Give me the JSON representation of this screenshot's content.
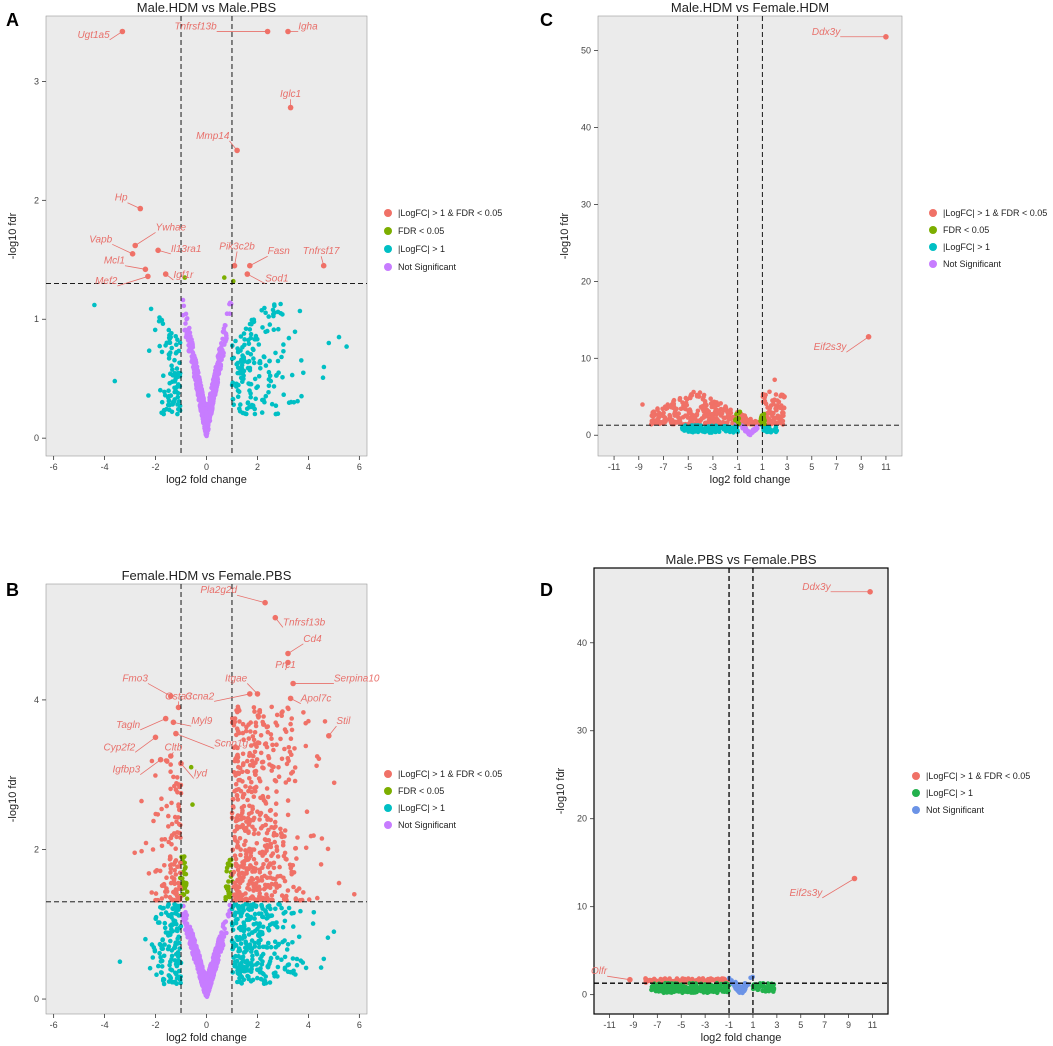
{
  "panels": [
    {
      "label": "A",
      "chart_data": {
        "type": "scatter",
        "title": "Male.HDM vs Male.PBS",
        "xlabel": "log2 fold change",
        "ylabel": "-log10 fdr",
        "xlim": [
          -6.3,
          6.3
        ],
        "ylim": [
          -0.15,
          3.55
        ],
        "xticks": [
          -6,
          -4,
          -2,
          0,
          2,
          4,
          6
        ],
        "yticks": [
          0,
          1,
          2,
          3
        ],
        "vlines": [
          -1,
          1
        ],
        "hline": 1.3,
        "legend": [
          "|LogFC| > 1 & FDR < 0.05",
          "FDR < 0.05",
          "|LogFC| > 1",
          "Not Significant"
        ],
        "legend_colors": [
          "#f07167",
          "#7cae00",
          "#00bfc4",
          "#c77cff"
        ],
        "annotations": [
          {
            "text": "Ugt1a5",
            "x": -3.3,
            "y": 3.42,
            "tx": -3.8,
            "ty": 3.35
          },
          {
            "text": "Tnfrsf13b",
            "x": 2.4,
            "y": 3.42,
            "tx": 0.4,
            "ty": 3.42
          },
          {
            "text": "Igha",
            "x": 3.2,
            "y": 3.42,
            "tx": 3.6,
            "ty": 3.42
          },
          {
            "text": "Iglc1",
            "x": 3.3,
            "y": 2.78,
            "tx": 3.3,
            "ty": 2.85
          },
          {
            "text": "Mmp14",
            "x": 1.2,
            "y": 2.42,
            "tx": 0.9,
            "ty": 2.5
          },
          {
            "text": "Hp",
            "x": -2.6,
            "y": 1.93,
            "tx": -3.1,
            "ty": 1.98
          },
          {
            "text": "Ywhae",
            "x": -2.8,
            "y": 1.62,
            "tx": -2.0,
            "ty": 1.73
          },
          {
            "text": "Vapb",
            "x": -2.9,
            "y": 1.55,
            "tx": -3.7,
            "ty": 1.63
          },
          {
            "text": "Il13ra1",
            "x": -1.9,
            "y": 1.58,
            "tx": -1.4,
            "ty": 1.55
          },
          {
            "text": "Pik3c2b",
            "x": 1.1,
            "y": 1.45,
            "tx": 1.2,
            "ty": 1.57
          },
          {
            "text": "Fasn",
            "x": 1.7,
            "y": 1.45,
            "tx": 2.4,
            "ty": 1.53
          },
          {
            "text": "Tnfrsf17",
            "x": 4.6,
            "y": 1.45,
            "tx": 4.5,
            "ty": 1.53
          },
          {
            "text": "Mcl1",
            "x": -2.4,
            "y": 1.42,
            "tx": -3.2,
            "ty": 1.45
          },
          {
            "text": "Igf1r",
            "x": -1.6,
            "y": 1.38,
            "tx": -1.3,
            "ty": 1.33
          },
          {
            "text": "Sod1",
            "x": 1.6,
            "y": 1.38,
            "tx": 2.3,
            "ty": 1.3
          },
          {
            "text": "Mef2",
            "x": -2.3,
            "y": 1.36,
            "tx": -3.5,
            "ty": 1.28
          }
        ]
      }
    },
    {
      "label": "B",
      "chart_data": {
        "type": "scatter",
        "title": "Female.HDM vs Female.PBS",
        "xlabel": "log2 fold change",
        "ylabel": "-log10 fdr",
        "xlim": [
          -6.3,
          6.3
        ],
        "ylim": [
          -0.2,
          5.55
        ],
        "xticks": [
          -6,
          -4,
          -2,
          0,
          2,
          4,
          6
        ],
        "yticks": [
          0,
          2,
          4
        ],
        "vlines": [
          -1,
          1
        ],
        "hline": 1.3,
        "legend": [
          "|LogFC| > 1 & FDR < 0.05",
          "FDR < 0.05",
          "|LogFC| > 1",
          "Not Significant"
        ],
        "legend_colors": [
          "#f07167",
          "#7cae00",
          "#00bfc4",
          "#c77cff"
        ],
        "annotations": [
          {
            "text": "Pla2g2d",
            "x": 2.3,
            "y": 5.3,
            "tx": 1.2,
            "ty": 5.4
          },
          {
            "text": "Tnfrsf13b",
            "x": 2.7,
            "y": 5.1,
            "tx": 3.0,
            "ty": 4.97
          },
          {
            "text": "Cd4",
            "x": 3.2,
            "y": 4.62,
            "tx": 3.8,
            "ty": 4.75
          },
          {
            "text": "Prc1",
            "x": 3.2,
            "y": 4.5,
            "tx": 3.1,
            "ty": 4.4
          },
          {
            "text": "Serpina10",
            "x": 3.4,
            "y": 4.22,
            "tx": 5.0,
            "ty": 4.22
          },
          {
            "text": "Fmo3",
            "x": -1.4,
            "y": 4.05,
            "tx": -2.3,
            "ty": 4.22
          },
          {
            "text": "Itgae",
            "x": 2.0,
            "y": 4.08,
            "tx": 1.6,
            "ty": 4.22
          },
          {
            "text": "Gsta3",
            "x": -1.1,
            "y": 3.9,
            "tx": -1.1,
            "ty": 3.98
          },
          {
            "text": "Ccna2",
            "x": 1.7,
            "y": 4.08,
            "tx": 0.3,
            "ty": 3.98
          },
          {
            "text": "Apol7c",
            "x": 3.3,
            "y": 4.02,
            "tx": 3.7,
            "ty": 3.95
          },
          {
            "text": "Tagln",
            "x": -1.6,
            "y": 3.75,
            "tx": -2.6,
            "ty": 3.6
          },
          {
            "text": "Myl9",
            "x": -1.3,
            "y": 3.7,
            "tx": -0.6,
            "ty": 3.65
          },
          {
            "text": "Stil",
            "x": 4.8,
            "y": 3.52,
            "tx": 5.1,
            "ty": 3.65
          },
          {
            "text": "Scnn1g",
            "x": -1.2,
            "y": 3.55,
            "tx": 0.3,
            "ty": 3.35
          },
          {
            "text": "Cyp2f2",
            "x": -2.0,
            "y": 3.5,
            "tx": -2.8,
            "ty": 3.3
          },
          {
            "text": "Cltb",
            "x": -1.4,
            "y": 3.25,
            "tx": -1.3,
            "ty": 3.3
          },
          {
            "text": "Igfbp3",
            "x": -1.8,
            "y": 3.2,
            "tx": -2.6,
            "ty": 3.0
          },
          {
            "text": "Iyd",
            "x": -1.0,
            "y": 3.15,
            "tx": -0.5,
            "ty": 2.95
          }
        ]
      }
    },
    {
      "label": "C",
      "chart_data": {
        "type": "scatter",
        "title": "Male.HDM vs Female.HDM",
        "xlabel": "log2 fold change",
        "ylabel": "-log10 fdr",
        "xlim": [
          -12.3,
          12.3
        ],
        "ylim": [
          -2.7,
          54.5
        ],
        "xticks": [
          -11,
          -9,
          -7,
          -5,
          -3,
          -1,
          1,
          3,
          5,
          7,
          9,
          11
        ],
        "yticks": [
          0,
          10,
          20,
          30,
          40,
          50
        ],
        "vlines": [
          -1,
          1
        ],
        "hline": 1.3,
        "legend": [
          "|LogFC| > 1 & FDR < 0.05",
          "FDR < 0.05",
          "|LogFC| > 1",
          "Not Significant"
        ],
        "legend_colors": [
          "#f07167",
          "#7cae00",
          "#00bfc4",
          "#c77cff"
        ],
        "annotations": [
          {
            "text": "Ddx3y",
            "x": 11.0,
            "y": 51.8,
            "tx": 7.3,
            "ty": 51.8
          },
          {
            "text": "Eif2s3y",
            "x": 9.6,
            "y": 12.8,
            "tx": 7.8,
            "ty": 10.8
          }
        ]
      }
    },
    {
      "label": "D",
      "chart_data": {
        "type": "scatter",
        "title": "Male.PBS vs Female.PBS",
        "xlabel": "log2 fold change",
        "ylabel": "-log10 fdr",
        "xlim": [
          -12.3,
          12.3
        ],
        "ylim": [
          -2.2,
          48.5
        ],
        "xticks": [
          -11,
          -9,
          -7,
          -5,
          -3,
          -1,
          1,
          3,
          5,
          7,
          9,
          11
        ],
        "yticks": [
          0,
          10,
          20,
          30,
          40
        ],
        "vlines": [
          -1,
          1
        ],
        "hline": 1.3,
        "legend": [
          "|LogFC| > 1 & FDR < 0.05",
          "|LogFC| > 1",
          "Not Significant"
        ],
        "legend_colors": [
          "#f07167",
          "#22b14c",
          "#6b93e6"
        ],
        "annotations": [
          {
            "text": "Ddx3y",
            "x": 10.8,
            "y": 45.8,
            "tx": 7.5,
            "ty": 45.8
          },
          {
            "text": "Eif2s3y",
            "x": 9.5,
            "y": 13.2,
            "tx": 6.8,
            "ty": 11.0
          },
          {
            "text": "Olfr",
            "x": -9.3,
            "y": 1.7,
            "tx": -11.2,
            "ty": 2.1
          }
        ]
      }
    }
  ]
}
